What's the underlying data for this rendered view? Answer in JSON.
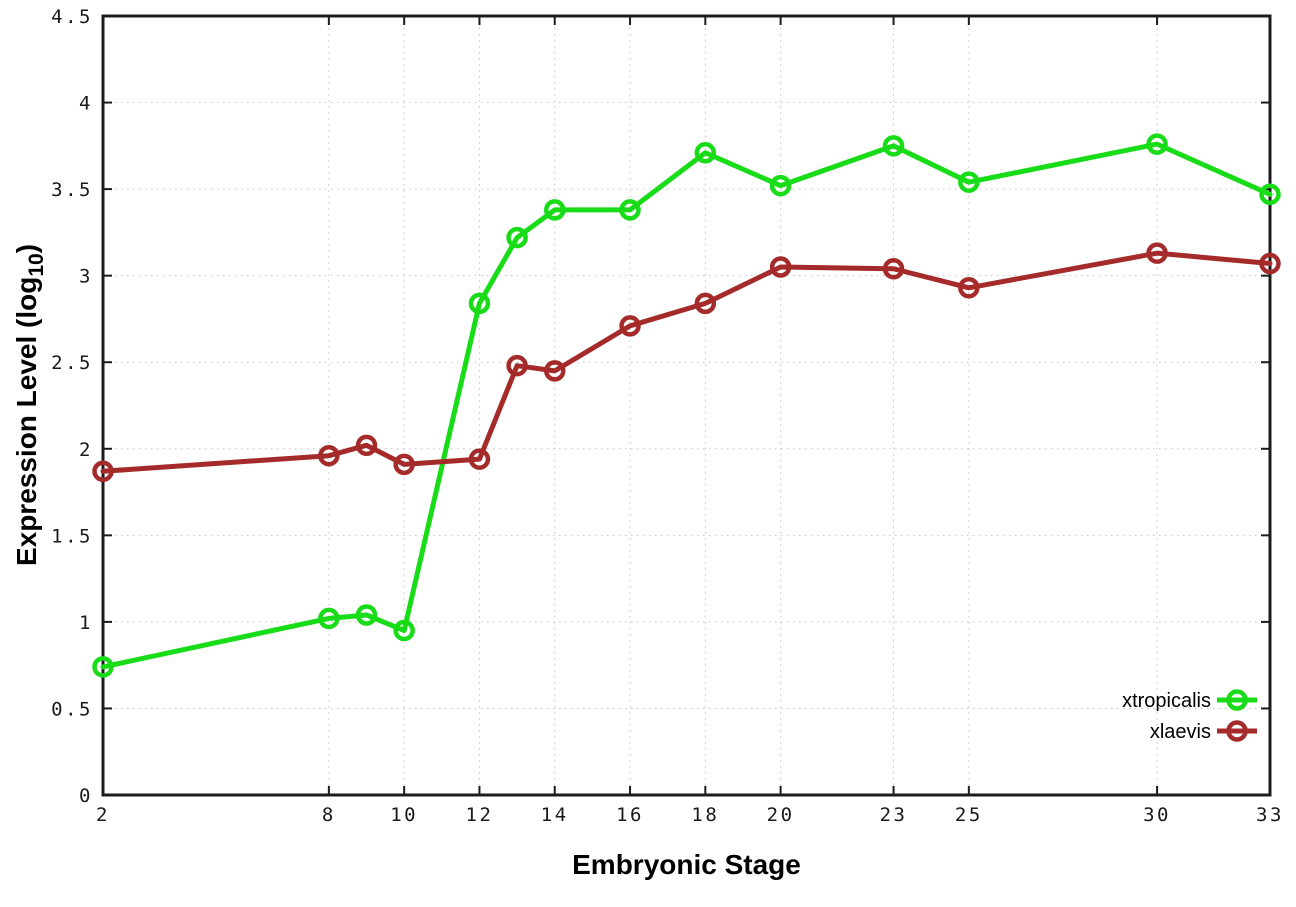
{
  "chart_data": {
    "type": "line",
    "title": "",
    "xlabel": "Embryonic Stage",
    "ylabel": {
      "text": "Expression Level (log",
      "sub": "10",
      "suffix": ")"
    },
    "x": [
      2,
      8,
      9,
      10,
      12,
      13,
      14,
      16,
      18,
      20,
      23,
      25,
      30,
      33
    ],
    "series": [
      {
        "name": "xtropicalis",
        "color": "#17dc17",
        "values": [
          0.74,
          1.02,
          1.04,
          0.95,
          2.84,
          3.22,
          3.38,
          3.38,
          3.71,
          3.52,
          3.75,
          3.54,
          3.76,
          3.47
        ]
      },
      {
        "name": "xlaevis",
        "color": "#a52b2b",
        "values": [
          1.87,
          1.96,
          2.02,
          1.91,
          1.94,
          2.48,
          2.45,
          2.71,
          2.84,
          3.05,
          3.04,
          2.93,
          3.13,
          3.07
        ]
      }
    ],
    "xticks": [
      "2",
      "8",
      "10",
      "12",
      "14",
      "16",
      "18",
      "20",
      "23",
      "25",
      "30",
      "33"
    ],
    "yticks": [
      "0",
      "0.5",
      "1",
      "1.5",
      "2",
      "2.5",
      "3",
      "3.5",
      "4",
      "4.5"
    ],
    "xlim": [
      2,
      33
    ],
    "ylim": [
      0,
      4.5
    ],
    "grid": true,
    "grid_style": "dotted",
    "marker": "open-circle",
    "legend_position": "inside-bottom-right",
    "colors": {
      "background": "#ffffff",
      "grid": "#c4c4c4",
      "axis": "#1c1c1c",
      "tick_text": "#1a1a1a",
      "label_text": "#000000"
    }
  }
}
